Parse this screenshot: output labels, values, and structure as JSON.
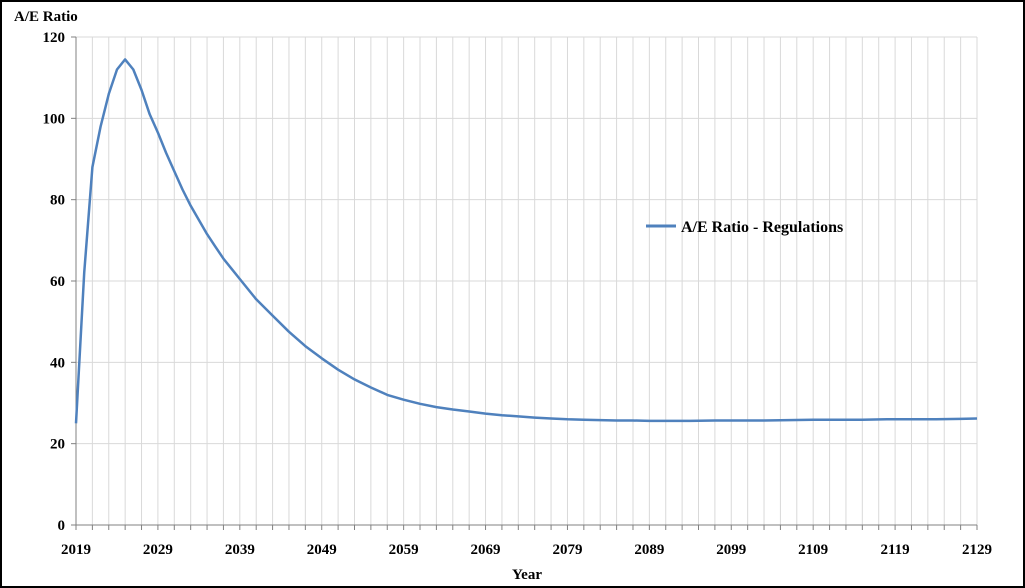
{
  "chart_data": {
    "type": "line",
    "ylabel": "A/E Ratio",
    "xlabel": "Year",
    "xlim": [
      2019,
      2129
    ],
    "ylim": [
      0,
      120
    ],
    "x_ticks": [
      2019,
      2029,
      2039,
      2049,
      2059,
      2069,
      2079,
      2089,
      2099,
      2109,
      2119,
      2129
    ],
    "y_ticks": [
      0,
      20,
      40,
      60,
      80,
      100,
      120
    ],
    "grid": true,
    "legend_position": "right-middle",
    "colors": {
      "series": "#4F81BD",
      "grid": "#D9D9D9",
      "axis": "#808080"
    },
    "series": [
      {
        "name": "A/E Ratio - Regulations",
        "x": [
          2019,
          2020,
          2021,
          2022,
          2023,
          2024,
          2025,
          2026,
          2027,
          2028,
          2029,
          2030,
          2031,
          2032,
          2033,
          2034,
          2035,
          2036,
          2037,
          2038,
          2039,
          2041,
          2043,
          2045,
          2047,
          2049,
          2051,
          2053,
          2055,
          2057,
          2059,
          2061,
          2063,
          2065,
          2067,
          2069,
          2071,
          2073,
          2075,
          2077,
          2079,
          2081,
          2083,
          2085,
          2087,
          2089,
          2091,
          2094,
          2097,
          2100,
          2103,
          2106,
          2109,
          2112,
          2115,
          2118,
          2121,
          2124,
          2127,
          2129
        ],
        "values": [
          25,
          62,
          88,
          98,
          106,
          112,
          114.5,
          112,
          107,
          101,
          96.5,
          91.5,
          87,
          82.5,
          78.5,
          75,
          71.5,
          68.5,
          65.5,
          63,
          60.5,
          55.5,
          51.5,
          47.5,
          44,
          41,
          38.2,
          35.8,
          33.8,
          32,
          30.8,
          29.8,
          29,
          28.4,
          27.9,
          27.4,
          27,
          26.7,
          26.4,
          26.2,
          26,
          25.9,
          25.8,
          25.7,
          25.7,
          25.6,
          25.6,
          25.6,
          25.7,
          25.7,
          25.7,
          25.8,
          25.9,
          25.9,
          25.9,
          26,
          26,
          26,
          26.1,
          26.2
        ]
      }
    ]
  }
}
